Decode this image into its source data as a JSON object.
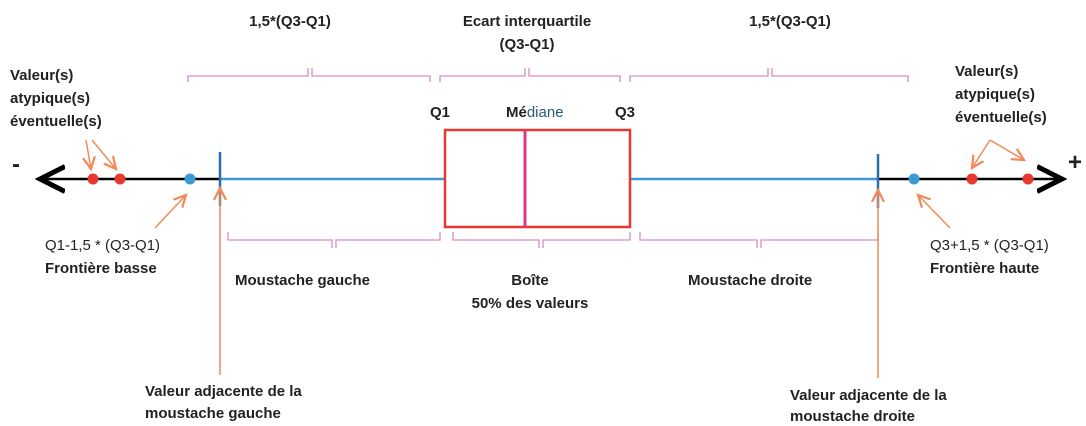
{
  "top": {
    "left_range": "1,5*(Q3-Q1)",
    "center_range": [
      "Ecart interquartile",
      "(Q3-Q1)"
    ],
    "right_range": "1,5*(Q3-Q1)"
  },
  "outliers_left": [
    "Valeur(s)",
    "atypique(s)",
    "éventuelle(s)"
  ],
  "outliers_right": [
    "Valeur(s)",
    "atypique(s)",
    "éventuelle(s)"
  ],
  "axis": {
    "minus": "-",
    "plus": "+"
  },
  "box": {
    "q1": "Q1",
    "median": [
      "Mé",
      "diane"
    ],
    "q3": "Q3"
  },
  "lower_fence": [
    "Q1-1,5 * (Q3-Q1)",
    "Frontière basse"
  ],
  "upper_fence": [
    "Q3+1,5 * (Q3-Q1)",
    "Frontière haute"
  ],
  "sections": {
    "left_whisker": "Moustache gauche",
    "box": [
      "Boîte",
      "50% des valeurs"
    ],
    "right_whisker": "Moustache droite"
  },
  "adjacent_left": [
    "Valeur adjacente de la",
    "moustache gauche"
  ],
  "adjacent_right": [
    "Valeur adjacente de la",
    "moustache droite"
  ]
}
